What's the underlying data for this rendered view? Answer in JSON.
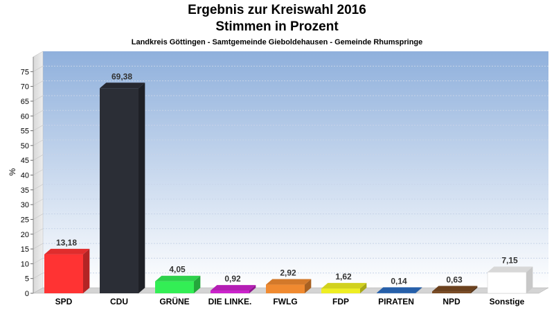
{
  "chart_data": {
    "type": "bar",
    "title": "Ergebnis zur Kreiswahl 2016",
    "subtitle": "Stimmen in Prozent",
    "caption": "Landkreis Göttingen - Samtgemeinde Gieboldehausen - Gemeinde Rhumspringe",
    "ylabel": "%",
    "xlabel": "",
    "ylim": [
      0,
      80
    ],
    "yticks": [
      0,
      5,
      10,
      15,
      20,
      25,
      30,
      35,
      40,
      45,
      50,
      55,
      60,
      65,
      70,
      75
    ],
    "grid": true,
    "categories": [
      "SPD",
      "CDU",
      "GRÜNE",
      "DIE LINKE.",
      "FWLG",
      "FDP",
      "PIRATEN",
      "NPD",
      "Sonstige"
    ],
    "values": [
      13.18,
      69.38,
      4.05,
      0.92,
      2.92,
      1.62,
      0.14,
      0.63,
      7.15
    ],
    "value_labels": [
      "13,18",
      "69,38",
      "4,05",
      "0,92",
      "2,92",
      "1,62",
      "0,14",
      "0,63",
      "7,15"
    ],
    "colors": [
      "#ff3333",
      "#2b2e36",
      "#33ee55",
      "#cc22cc",
      "#f08a30",
      "#eeee22",
      "#2b6cc0",
      "#7a4a22",
      "#ffffff"
    ]
  }
}
